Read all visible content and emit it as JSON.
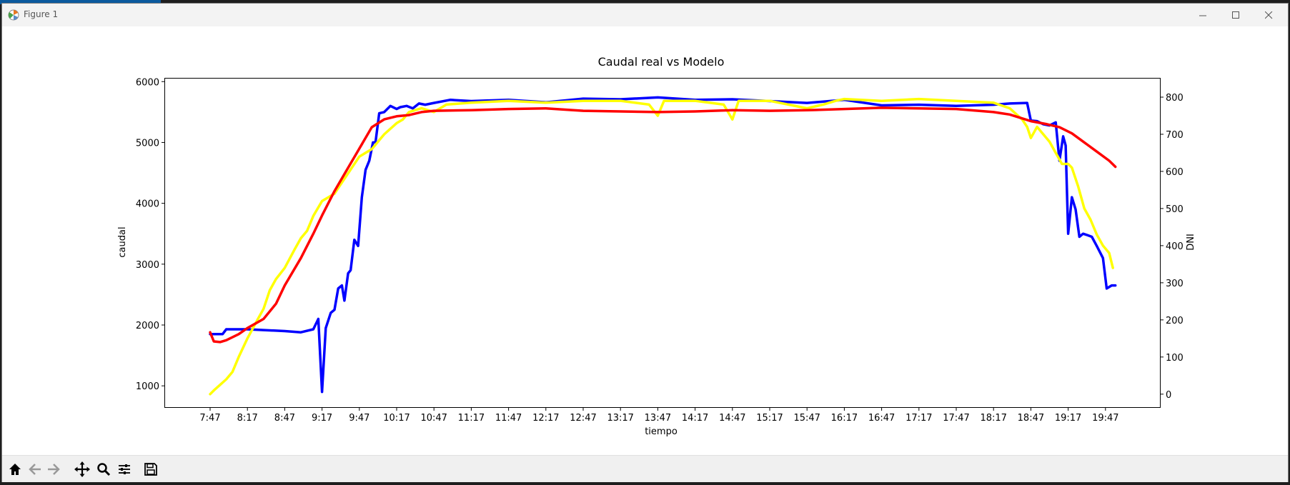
{
  "window": {
    "title": "Figure 1"
  },
  "toolbar": {
    "buttons": [
      "home-icon",
      "back-icon",
      "forward-icon",
      "pan-icon",
      "zoom-icon",
      "configure-subplots-icon",
      "save-icon"
    ]
  },
  "chart_data": {
    "type": "line",
    "title": "Caudal real vs Modelo",
    "xlabel": "tiempo",
    "ylabel": "caudal",
    "ylabel_right": "DNI",
    "ylim": [
      650,
      6050
    ],
    "ylim_right": [
      -35,
      850
    ],
    "yticks": [
      1000,
      2000,
      3000,
      4000,
      5000,
      6000
    ],
    "yticks_right": [
      0,
      100,
      200,
      300,
      400,
      500,
      600,
      700,
      800
    ],
    "x_ticks": [
      "7:47",
      "8:17",
      "8:47",
      "9:17",
      "9:47",
      "10:17",
      "10:47",
      "11:17",
      "11:47",
      "12:17",
      "12:47",
      "13:17",
      "13:47",
      "14:17",
      "14:47",
      "15:17",
      "15:47",
      "16:17",
      "16:47",
      "17:17",
      "17:47",
      "18:17",
      "18:47",
      "19:17",
      "19:47"
    ],
    "grid": false,
    "series": [
      {
        "color": "#0000ff",
        "axis": "left",
        "x": [
          "7:47",
          "7:57",
          "8:00",
          "8:17",
          "8:47",
          "9:00",
          "9:10",
          "9:14",
          "9:17",
          "9:20",
          "9:24",
          "9:27",
          "9:30",
          "9:33",
          "9:35",
          "9:38",
          "9:40",
          "9:43",
          "9:46",
          "9:49",
          "9:52",
          "9:55",
          "9:58",
          "10:00",
          "10:03",
          "10:07",
          "10:12",
          "10:17",
          "10:20",
          "10:25",
          "10:30",
          "10:35",
          "10:40",
          "10:47",
          "11:00",
          "11:17",
          "11:47",
          "12:17",
          "12:47",
          "13:17",
          "13:47",
          "14:17",
          "14:47",
          "15:17",
          "15:47",
          "16:17",
          "16:47",
          "17:17",
          "17:47",
          "18:17",
          "18:30",
          "18:44",
          "18:47",
          "18:52",
          "18:57",
          "19:02",
          "19:07",
          "19:10",
          "19:13",
          "19:15",
          "19:17",
          "19:20",
          "19:23",
          "19:26",
          "19:29",
          "19:32",
          "19:36",
          "19:40",
          "19:45",
          "19:48",
          "19:52",
          "19:55"
        ],
        "y": [
          1850,
          1850,
          1930,
          1930,
          1900,
          1880,
          1930,
          2100,
          900,
          1950,
          2200,
          2250,
          2600,
          2650,
          2400,
          2850,
          2900,
          3400,
          3300,
          4100,
          4550,
          4700,
          5000,
          5000,
          5480,
          5500,
          5600,
          5550,
          5580,
          5600,
          5560,
          5640,
          5620,
          5650,
          5700,
          5680,
          5700,
          5660,
          5720,
          5710,
          5740,
          5700,
          5710,
          5680,
          5650,
          5700,
          5610,
          5620,
          5600,
          5620,
          5640,
          5650,
          5360,
          5350,
          5300,
          5280,
          5330,
          4700,
          5100,
          4950,
          3500,
          4100,
          3900,
          3450,
          3500,
          3480,
          3450,
          3300,
          3100,
          2600,
          2650,
          2650
        ]
      },
      {
        "color": "#ff0000",
        "axis": "left",
        "x": [
          "7:47",
          "7:50",
          "7:55",
          "8:00",
          "8:10",
          "8:17",
          "8:30",
          "8:40",
          "8:47",
          "9:00",
          "9:10",
          "9:17",
          "9:27",
          "9:37",
          "9:47",
          "9:57",
          "10:07",
          "10:17",
          "10:27",
          "10:37",
          "10:47",
          "11:17",
          "11:47",
          "12:17",
          "12:47",
          "13:17",
          "13:47",
          "14:17",
          "14:47",
          "15:17",
          "15:47",
          "16:17",
          "16:47",
          "17:17",
          "17:47",
          "18:17",
          "18:30",
          "18:47",
          "19:00",
          "19:10",
          "19:20",
          "19:30",
          "19:40",
          "19:50",
          "19:55"
        ],
        "y": [
          1880,
          1730,
          1720,
          1750,
          1850,
          1950,
          2100,
          2350,
          2650,
          3100,
          3500,
          3800,
          4200,
          4550,
          4900,
          5250,
          5380,
          5430,
          5450,
          5500,
          5520,
          5530,
          5550,
          5560,
          5520,
          5510,
          5500,
          5510,
          5530,
          5520,
          5530,
          5550,
          5570,
          5560,
          5550,
          5500,
          5460,
          5350,
          5300,
          5250,
          5150,
          5000,
          4850,
          4700,
          4600
        ]
      }
    ],
    "series_right": [
      {
        "color": "#ffff00",
        "axis": "right",
        "x": [
          "7:47",
          "7:50",
          "7:55",
          "8:00",
          "8:05",
          "8:10",
          "8:17",
          "8:25",
          "8:30",
          "8:35",
          "8:40",
          "8:47",
          "8:55",
          "9:00",
          "9:05",
          "9:10",
          "9:17",
          "9:27",
          "9:37",
          "9:47",
          "9:57",
          "10:07",
          "10:17",
          "10:22",
          "10:27",
          "10:37",
          "10:47",
          "10:57",
          "11:17",
          "11:47",
          "12:17",
          "12:47",
          "13:17",
          "13:40",
          "13:47",
          "13:52",
          "14:17",
          "14:40",
          "14:47",
          "14:52",
          "15:17",
          "15:47",
          "16:00",
          "16:10",
          "16:17",
          "16:47",
          "17:17",
          "17:47",
          "18:17",
          "18:30",
          "18:40",
          "18:44",
          "18:47",
          "18:52",
          "18:57",
          "19:02",
          "19:07",
          "19:12",
          "19:17",
          "19:20",
          "19:25",
          "19:30",
          "19:35",
          "19:40",
          "19:45",
          "19:50",
          "19:53"
        ],
        "y": [
          0,
          10,
          25,
          40,
          60,
          100,
          150,
          200,
          230,
          280,
          310,
          340,
          390,
          420,
          440,
          480,
          520,
          540,
          590,
          640,
          660,
          700,
          730,
          740,
          760,
          770,
          760,
          780,
          785,
          790,
          785,
          790,
          790,
          780,
          750,
          790,
          790,
          780,
          740,
          790,
          790,
          770,
          780,
          790,
          795,
          790,
          795,
          790,
          785,
          770,
          740,
          720,
          690,
          720,
          700,
          680,
          650,
          620,
          620,
          610,
          560,
          500,
          470,
          430,
          400,
          380,
          340
        ]
      }
    ]
  }
}
